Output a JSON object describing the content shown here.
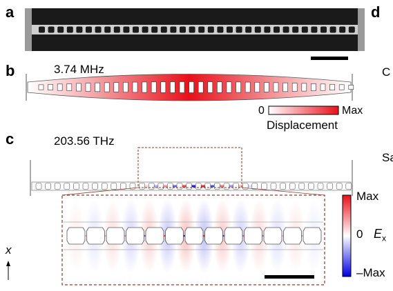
{
  "panels": {
    "a": {
      "label": "a"
    },
    "b": {
      "label": "b",
      "frequency": "3.74 MHz",
      "colorbar": {
        "min": "0",
        "max": "Max",
        "title": "Displacement",
        "colors": [
          "#ffffff",
          "#e8101a"
        ]
      }
    },
    "c": {
      "label": "c",
      "frequency": "203.56 THz",
      "colorbar": {
        "max": "Max",
        "mid": "0",
        "min": "–Max",
        "quantity": "E",
        "subscript": "x",
        "colors": [
          "#0000e0",
          "#ffffff",
          "#e8101a"
        ]
      },
      "axis": "x"
    },
    "d": {
      "label": "d",
      "fragments": [
        "C",
        "Sa"
      ]
    }
  },
  "colors": {
    "sem_dark": "#1a1a1a",
    "sem_bright": "#d0d0d0",
    "inset_border": "#8b3a2a",
    "red": "#e8101a",
    "blue": "#1010e0"
  }
}
